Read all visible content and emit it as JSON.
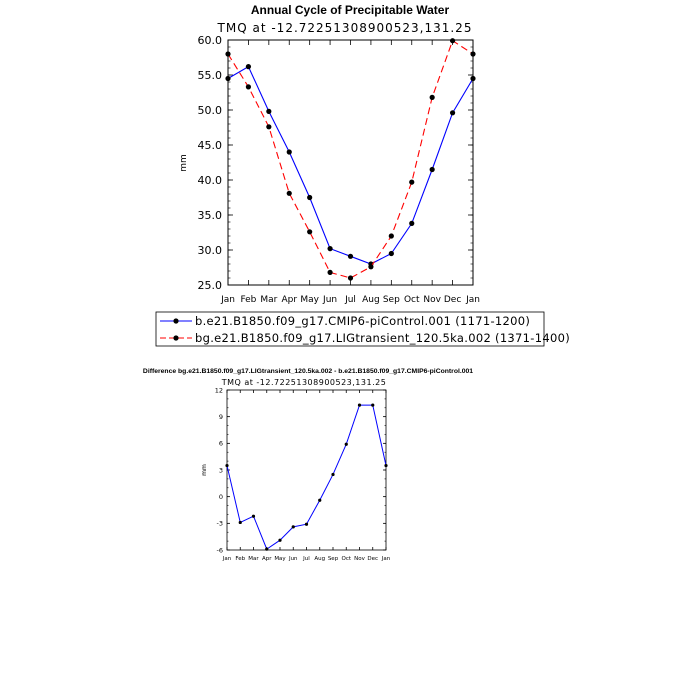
{
  "chart_data": [
    {
      "type": "line",
      "title": "Annual Cycle of Precipitable Water",
      "subtitle": "TMQ at -12.72251308900523,131.25",
      "xlabel": "",
      "ylabel": "mm",
      "ylim": [
        25.0,
        60.0
      ],
      "yticks": [
        "25.0",
        "30.0",
        "35.0",
        "40.0",
        "45.0",
        "50.0",
        "55.0",
        "60.0"
      ],
      "categories": [
        "Jan",
        "Feb",
        "Mar",
        "Apr",
        "May",
        "Jun",
        "Jul",
        "Aug",
        "Sep",
        "Oct",
        "Nov",
        "Dec",
        "Jan"
      ],
      "series": [
        {
          "name": "b.e21.B1850.f09_g17.CMIP6-piControl.001 (1171-1200)",
          "color": "#0000ff",
          "dash": "solid",
          "values": [
            54.5,
            56.2,
            49.8,
            44.0,
            37.5,
            30.2,
            29.1,
            28.0,
            29.5,
            33.8,
            41.5,
            49.6,
            54.5
          ]
        },
        {
          "name": "bg.e21.B1850.f09_g17.LIGtransient_120.5ka.002 (1371-1400)",
          "color": "#ff0000",
          "dash": "dashed",
          "values": [
            58.0,
            53.3,
            47.6,
            38.1,
            32.6,
            26.8,
            26.0,
            27.6,
            32.0,
            39.7,
            51.8,
            59.9,
            58.0
          ]
        }
      ]
    },
    {
      "type": "line",
      "title": "Difference bg.e21.B1850.f09_g17.LIGtransient_120.5ka.002 - b.e21.B1850.f09_g17.CMIP6-piControl.001",
      "subtitle": "TMQ at -12.72251308900523,131.25",
      "xlabel": "",
      "ylabel": "mm",
      "ylim": [
        -6,
        12
      ],
      "yticks": [
        "-6",
        "-3",
        "0",
        "3",
        "6",
        "9",
        "12"
      ],
      "categories": [
        "Jan",
        "Feb",
        "Mar",
        "Apr",
        "May",
        "Jun",
        "Jul",
        "Aug",
        "Sep",
        "Oct",
        "Nov",
        "Dec",
        "Jan"
      ],
      "series": [
        {
          "name": "difference",
          "color": "#0000ff",
          "dash": "solid",
          "values": [
            3.5,
            -2.9,
            -2.2,
            -5.9,
            -4.9,
            -3.4,
            -3.1,
            -0.4,
            2.5,
            5.9,
            10.3,
            10.3,
            3.5
          ]
        }
      ]
    }
  ]
}
